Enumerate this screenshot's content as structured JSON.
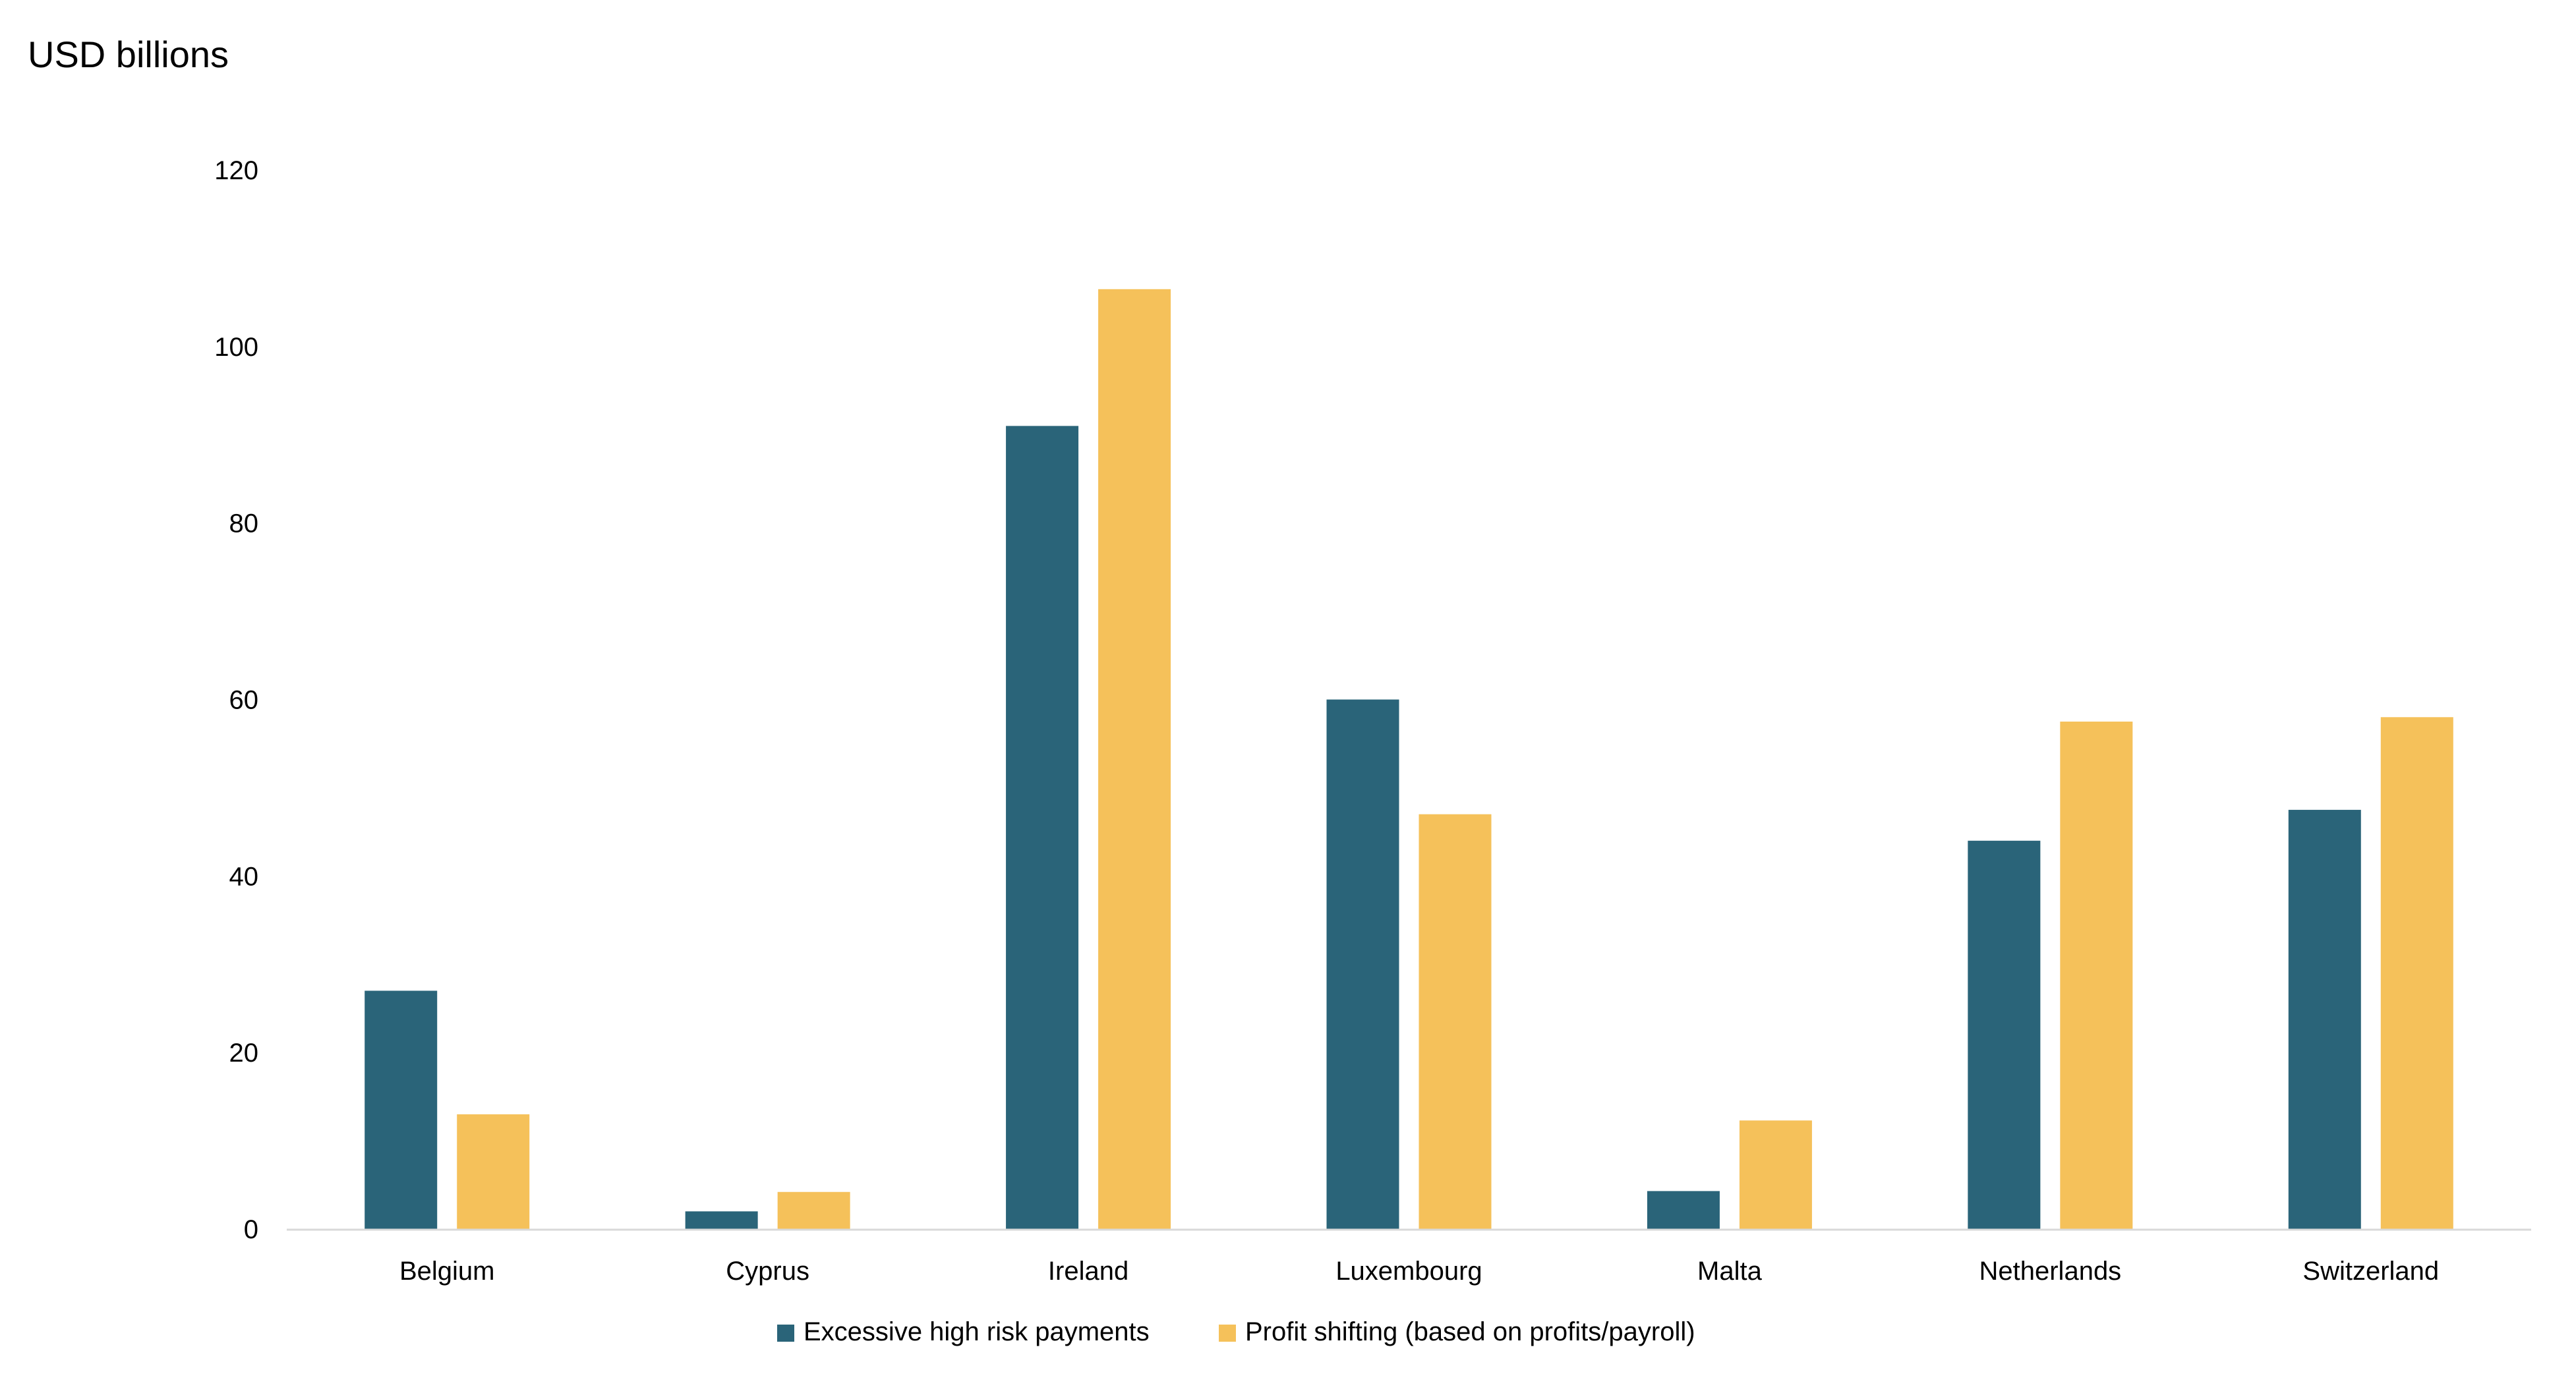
{
  "chart_data": {
    "type": "bar",
    "title": "",
    "ylabel": "USD billions",
    "xlabel": "",
    "ylim": [
      0,
      120
    ],
    "yticks": [
      0,
      20,
      40,
      60,
      80,
      100,
      120
    ],
    "grid": false,
    "legend_position": "bottom-center",
    "categories": [
      "Belgium",
      "Cyprus",
      "Ireland",
      "Luxembourg",
      "Malta",
      "Netherlands",
      "Switzerland"
    ],
    "series": [
      {
        "name": "Excessive high risk payments",
        "color": "#2A6479",
        "values": [
          27,
          2,
          91,
          60,
          4.3,
          44,
          47.5
        ]
      },
      {
        "name": "Profit shifting (based on profits/payroll)",
        "color": "#F5C15A",
        "values": [
          13,
          4.2,
          106.5,
          47,
          12.3,
          57.5,
          58
        ]
      }
    ]
  }
}
